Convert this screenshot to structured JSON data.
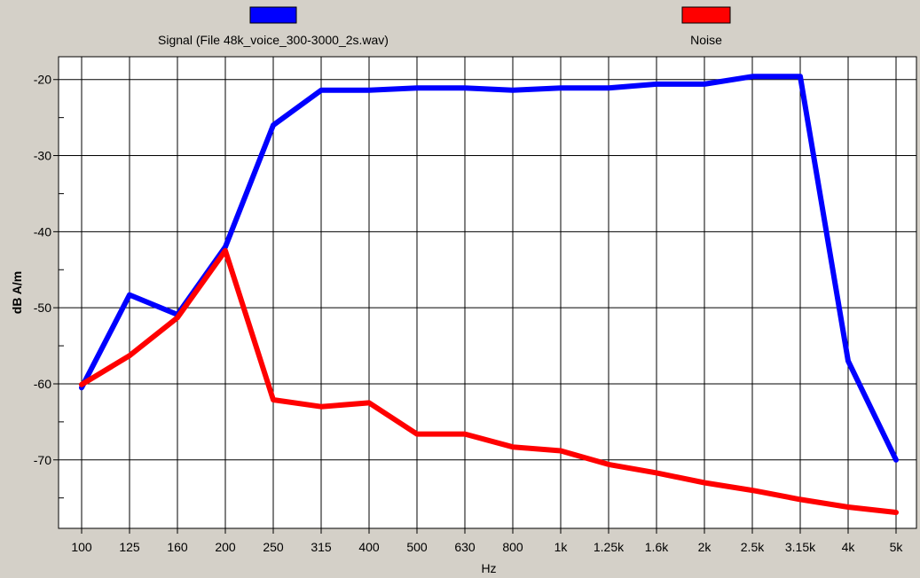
{
  "chart_data": {
    "type": "line",
    "xlabel": "Hz",
    "ylabel": "dB A/m",
    "categories": [
      "100",
      "125",
      "160",
      "200",
      "250",
      "315",
      "400",
      "500",
      "630",
      "800",
      "1k",
      "1.25k",
      "1.6k",
      "2k",
      "2.5k",
      "3.15k",
      "4k",
      "5k"
    ],
    "ylim": [
      -79,
      -17
    ],
    "yticks": [
      -20,
      -30,
      -40,
      -50,
      -60,
      -70
    ],
    "grid": true,
    "legend_position": "top",
    "series": [
      {
        "name": "Signal (File 48k_voice_300-3000_2s.wav)",
        "color": "#0000ff",
        "values": [
          -60.5,
          -48.3,
          -50.9,
          -42.0,
          -26.0,
          -21.4,
          -21.4,
          -21.1,
          -21.1,
          -21.4,
          -21.1,
          -21.1,
          -20.6,
          -20.6,
          -19.6,
          -19.6,
          -57.0,
          -70.0
        ]
      },
      {
        "name": "Noise",
        "color": "#ff0000",
        "values": [
          -60.1,
          -56.3,
          -51.3,
          -42.5,
          -62.1,
          -63.0,
          -62.5,
          -66.6,
          -66.6,
          -68.3,
          -68.8,
          -70.6,
          -71.7,
          -73.0,
          -74.0,
          -75.2,
          -76.2,
          -76.9
        ]
      }
    ]
  }
}
